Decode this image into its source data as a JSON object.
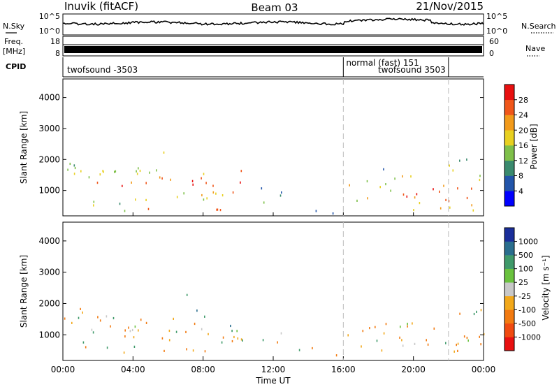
{
  "header": {
    "station": "Inuvik (fitACF)",
    "beam": "Beam 03",
    "date": "21/Nov/2015"
  },
  "strips": {
    "nsky_label": "N.Sky",
    "nsky_ticks": [
      "10^5",
      "10^0"
    ],
    "nsearch_label": "N.Search",
    "nsearch_ticks": [
      "10^5",
      "10^0"
    ],
    "freq_label": "Freq.",
    "freq_unit": "[MHz]",
    "freq_ticks": [
      "18",
      "8"
    ],
    "nave_label": "Nave",
    "nave_ticks": [
      "60",
      "0"
    ],
    "cpid_label": "CPID",
    "cpid_segments": [
      {
        "label": "twofsound -3503",
        "start_hour": 0,
        "end_hour": 16
      },
      {
        "label": "normal (fast) 151",
        "start_hour": 16,
        "end_hour": 22
      },
      {
        "label": "twofsound 3503",
        "start_hour": 16,
        "end_hour": 22
      }
    ]
  },
  "chart_data": [
    {
      "type": "heatmap",
      "name": "power",
      "ylabel": "Slant Range [km]",
      "y_ticks": [
        1000,
        2000,
        3000,
        4000
      ],
      "ylim": [
        180,
        4600
      ],
      "colorbar": {
        "label": "Power [dB]",
        "ticks": [
          4,
          8,
          12,
          16,
          20,
          24,
          28
        ]
      },
      "colors": [
        "#0000ff",
        "#2255aa",
        "#3a8a6e",
        "#7fc04a",
        "#e8d020",
        "#f29a1a",
        "#f0561a",
        "#e81010"
      ]
    },
    {
      "type": "heatmap",
      "name": "velocity",
      "ylabel": "Slant Range [km]",
      "xlabel": "Time UT",
      "x_ticks": [
        "00:00",
        "04:00",
        "08:00",
        "12:00",
        "16:00",
        "20:00",
        "00:00"
      ],
      "x_hours": [
        0,
        4,
        8,
        12,
        16,
        20,
        24
      ],
      "y_ticks": [
        1000,
        2000,
        3000,
        4000
      ],
      "ylim": [
        180,
        4600
      ],
      "colorbar": {
        "label": "Velocity [m s⁻¹]",
        "ticks": [
          "1000",
          "500",
          "100",
          "25",
          "-25",
          "-100",
          "-500",
          "-1000"
        ]
      },
      "colors": [
        "#1a2e9a",
        "#2a6e8e",
        "#3f9a6a",
        "#6ac23e",
        "#c8c8c8",
        "#f2a81a",
        "#f27a10",
        "#f04a10",
        "#e81010"
      ]
    }
  ]
}
